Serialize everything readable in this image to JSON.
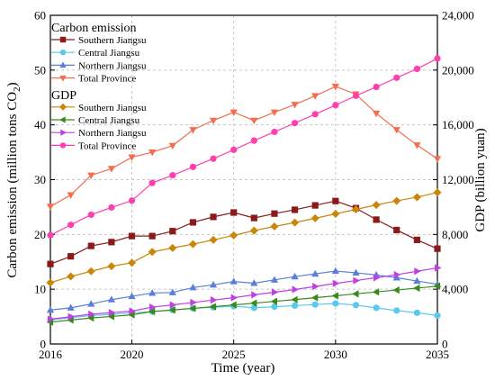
{
  "chart_data": {
    "type": "line",
    "x": [
      2016,
      2017,
      2018,
      2019,
      2020,
      2021,
      2022,
      2023,
      2024,
      2025,
      2026,
      2027,
      2028,
      2029,
      2030,
      2031,
      2032,
      2033,
      2034,
      2035
    ],
    "xlabel": "Time (year)",
    "ylabel_left": "Carbon emission (million tons CO",
    "ylabel_left_sub": "2",
    "ylabel_left_close": ")",
    "ylabel_right": "GDP (billion yuan)",
    "xlim": [
      2016,
      2035
    ],
    "ylim_left": [
      0,
      60
    ],
    "ylim_right": [
      0,
      24000
    ],
    "x_ticks": [
      2016,
      2020,
      2025,
      2030,
      2035
    ],
    "y_left_ticks": [
      0,
      10,
      20,
      30,
      40,
      50,
      60
    ],
    "y_right_ticks": [
      "0",
      "4,000",
      "8,000",
      "12,000",
      "16,000",
      "20,000",
      "24,000"
    ],
    "grid": true,
    "legend_groups": [
      {
        "title": "Carbon emission",
        "entries": [
          "Southern Jiangsu",
          "Central Jiangsu",
          "Northern Jiangsu",
          "Total Province"
        ]
      },
      {
        "title": "GDP",
        "entries": [
          "Southern Jiangsu",
          "Central Jiangsu",
          "Northern Jiangsu",
          "Total Province"
        ]
      }
    ],
    "legend_placement": "top-left",
    "series": [
      {
        "name": "Southern Jiangsu",
        "group": "Carbon emission",
        "axis": "left",
        "color": "#8b1a1a",
        "marker": "square",
        "values": [
          14.6,
          16.0,
          17.9,
          18.6,
          19.7,
          19.7,
          20.6,
          22.2,
          23.2,
          24.0,
          23.0,
          23.8,
          24.5,
          25.3,
          26.1,
          24.8,
          22.7,
          20.8,
          19.0,
          17.4
        ]
      },
      {
        "name": "Central Jiangsu",
        "group": "Carbon emission",
        "axis": "left",
        "color": "#5bc8f0",
        "marker": "circle",
        "values": [
          4.4,
          4.8,
          5.2,
          5.4,
          5.7,
          5.9,
          6.2,
          6.5,
          6.7,
          6.9,
          6.6,
          6.8,
          7.0,
          7.2,
          7.4,
          7.1,
          6.6,
          6.1,
          5.7,
          5.2
        ]
      },
      {
        "name": "Northern Jiangsu",
        "group": "Carbon emission",
        "axis": "left",
        "color": "#5b7fd8",
        "marker": "triangle-up",
        "values": [
          6.2,
          6.6,
          7.3,
          8.1,
          8.7,
          9.3,
          9.4,
          10.3,
          10.8,
          11.4,
          11.1,
          11.7,
          12.3,
          12.8,
          13.3,
          13.0,
          12.6,
          12.1,
          11.5,
          10.9
        ]
      },
      {
        "name": "Total Province",
        "group": "Carbon emission",
        "axis": "left",
        "color": "#f26e4f",
        "marker": "triangle-down",
        "values": [
          25.1,
          27.2,
          30.8,
          32.0,
          34.1,
          35.0,
          36.2,
          39.1,
          40.8,
          42.3,
          40.8,
          42.3,
          43.7,
          45.3,
          47.0,
          45.6,
          42.1,
          39.1,
          36.3,
          33.8
        ]
      },
      {
        "name": "Southern Jiangsu",
        "group": "GDP",
        "axis": "right",
        "color": "#c8860a",
        "marker": "diamond",
        "values": [
          4480,
          4930,
          5310,
          5680,
          5930,
          6720,
          7010,
          7290,
          7600,
          7930,
          8280,
          8580,
          8870,
          9180,
          9500,
          9830,
          10150,
          10450,
          10720,
          11060
        ]
      },
      {
        "name": "Central Jiangsu",
        "group": "GDP",
        "axis": "right",
        "color": "#3a8a1a",
        "marker": "triangle-left",
        "values": [
          1600,
          1750,
          1900,
          2010,
          2130,
          2370,
          2480,
          2600,
          2720,
          2850,
          2980,
          3110,
          3240,
          3380,
          3520,
          3660,
          3800,
          3940,
          4080,
          4220
        ]
      },
      {
        "name": "Northern Jiangsu",
        "group": "GDP",
        "axis": "right",
        "color": "#c040e0",
        "marker": "triangle-right",
        "values": [
          1810,
          1990,
          2180,
          2290,
          2400,
          2690,
          2850,
          3030,
          3210,
          3380,
          3590,
          3780,
          3980,
          4200,
          4420,
          4630,
          4840,
          5060,
          5310,
          5560
        ]
      },
      {
        "name": "Total Province",
        "group": "GDP",
        "axis": "right",
        "color": "#ff3fae",
        "marker": "circle",
        "values": [
          7940,
          8700,
          9440,
          9970,
          10470,
          11760,
          12320,
          12930,
          13530,
          14180,
          14850,
          15490,
          16130,
          16780,
          17440,
          18130,
          18770,
          19440,
          20090,
          20850
        ]
      }
    ]
  }
}
